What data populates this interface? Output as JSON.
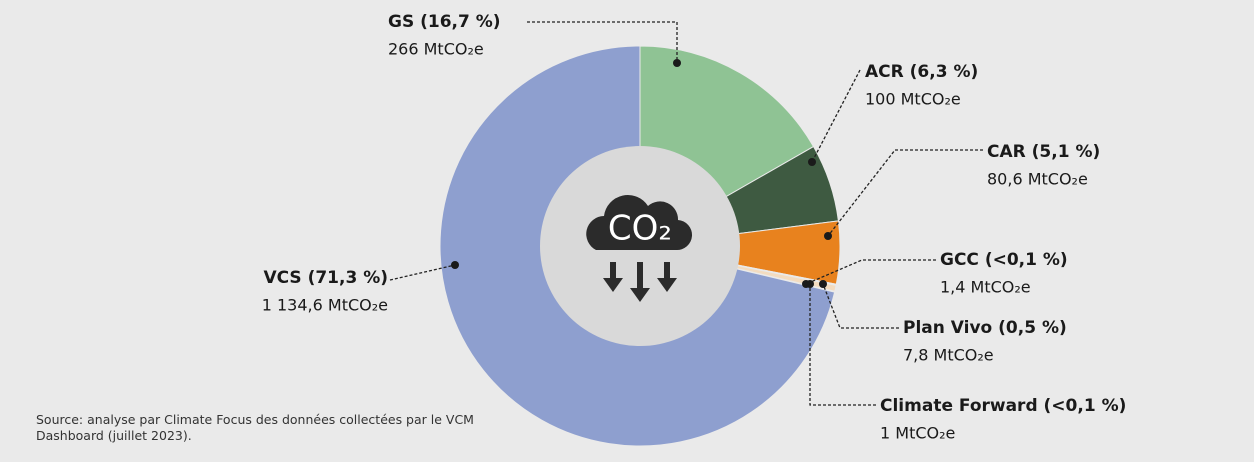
{
  "chart_data": {
    "type": "pie",
    "categories": [
      "GS (16,7 %)",
      "ACR (6,3 %)",
      "CAR (5,1 %)",
      "GCC (<0,1 %)",
      "Plan Vivo (0,5 %)",
      "Climate Forward (<0,1 %)",
      "VCS (71,3 %)"
    ],
    "values": [
      266,
      100,
      80.6,
      1.4,
      7.8,
      1,
      1134.6
    ],
    "value_labels": [
      "266 MtCO₂e",
      "100 MtCO₂e",
      "80,6 MtCO₂e",
      "1,4 MtCO₂e",
      "7,8 MtCO₂e",
      "1 MtCO₂e",
      "1 134,6 MtCO₂e"
    ],
    "colors": [
      "#8fc394",
      "#3e5a41",
      "#e8821e",
      "#ffffff",
      "#f3dcc0",
      "#a7b5dc",
      "#8e9fcf"
    ],
    "center_label": "CO₂",
    "source": "Source: analyse par Climate Focus des données collectées par le VCM Dashboard (juillet 2023)."
  }
}
